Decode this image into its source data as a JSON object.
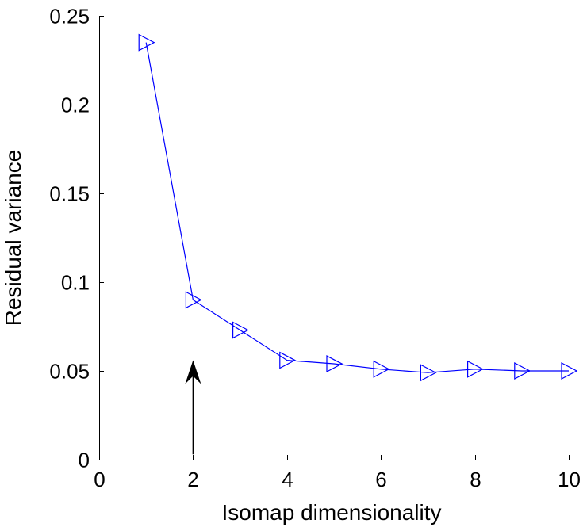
{
  "chart_data": {
    "type": "line",
    "title": "",
    "xlabel": "Isomap dimensionality",
    "ylabel": "Residual variance",
    "xlim": [
      0,
      10
    ],
    "ylim": [
      0,
      0.25
    ],
    "x_ticks": [
      "0",
      "2",
      "4",
      "6",
      "8",
      "10"
    ],
    "y_ticks": [
      "0",
      "0.05",
      "0.1",
      "0.15",
      "0.2",
      "0.25"
    ],
    "grid": false,
    "marker": "triangle-right",
    "series": [
      {
        "color": "#0000ff",
        "x": [
          1,
          2,
          3,
          4,
          5,
          6,
          7,
          8,
          9,
          10
        ],
        "y": [
          0.235,
          0.09,
          0.073,
          0.056,
          0.054,
          0.051,
          0.049,
          0.051,
          0.05,
          0.05
        ]
      }
    ],
    "annotations": [
      {
        "type": "arrow",
        "x": 2,
        "y_from": 0.003,
        "y_to": 0.056,
        "color": "#000000"
      }
    ]
  }
}
